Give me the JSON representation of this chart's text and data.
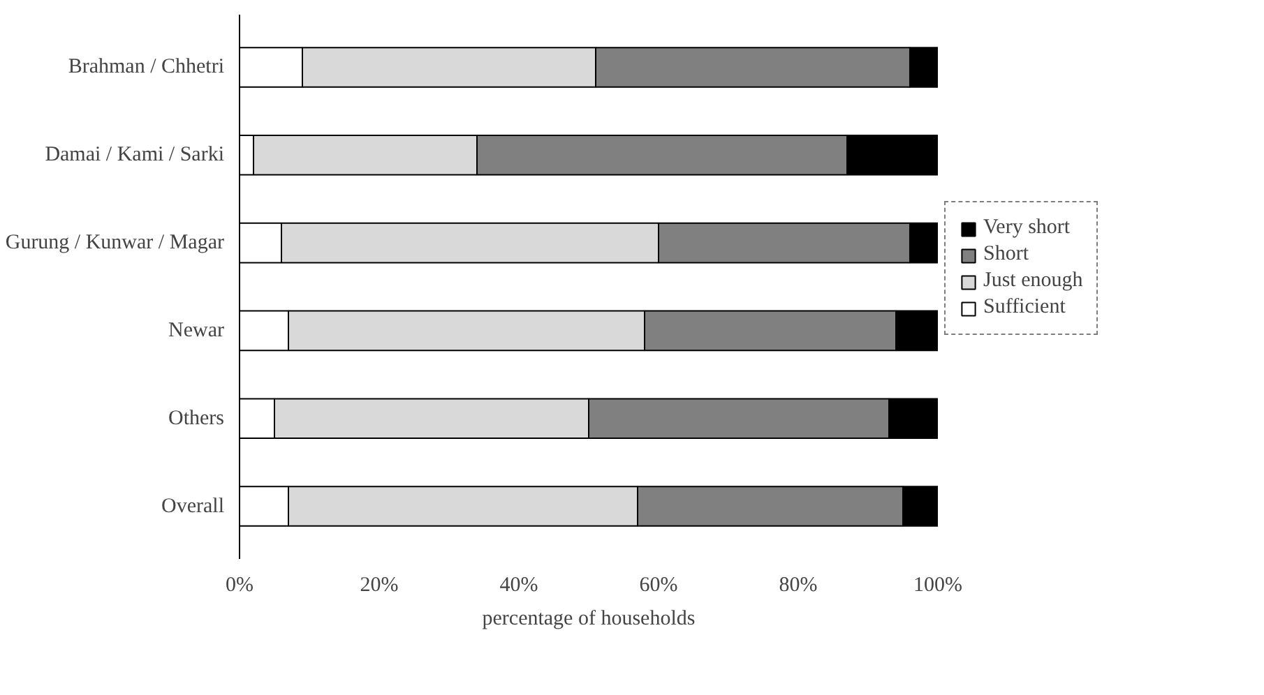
{
  "chart_data": {
    "type": "bar",
    "orientation": "horizontal",
    "stacked": true,
    "categories": [
      "Brahman / Chhetri",
      "Damai / Kami / Sarki",
      "Gurung / Kunwar / Magar",
      "Newar",
      "Others",
      "Overall"
    ],
    "series": [
      {
        "name": "Sufficient",
        "color": "#ffffff",
        "values": [
          9,
          2,
          6,
          7,
          5,
          7
        ]
      },
      {
        "name": "Just enough",
        "color": "#d9d9d9",
        "values": [
          42,
          32,
          54,
          51,
          45,
          50
        ]
      },
      {
        "name": "Short",
        "color": "#808080",
        "values": [
          45,
          53,
          36,
          36,
          43,
          38
        ]
      },
      {
        "name": "Very short",
        "color": "#000000",
        "values": [
          4,
          13,
          4,
          6,
          7,
          5
        ]
      }
    ],
    "xlim": [
      0,
      100
    ],
    "xticks": [
      {
        "value": 0,
        "label": "0%"
      },
      {
        "value": 20,
        "label": "20%"
      },
      {
        "value": 40,
        "label": "40%"
      },
      {
        "value": 60,
        "label": "60%"
      },
      {
        "value": 80,
        "label": "80%"
      },
      {
        "value": 100,
        "label": "100%"
      }
    ],
    "xlabel": "percentage of households",
    "grid": false,
    "legend": "right"
  }
}
